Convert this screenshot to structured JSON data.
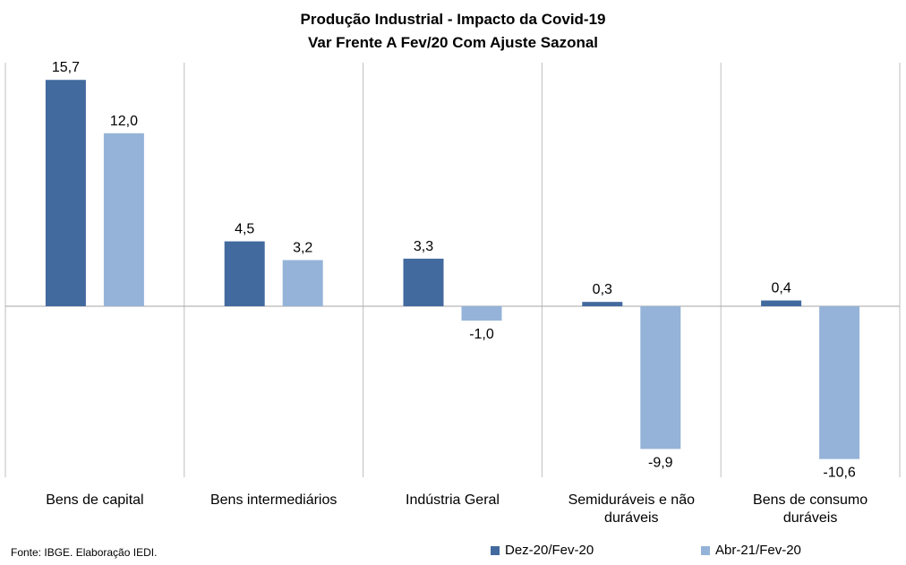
{
  "chart_data": {
    "type": "bar",
    "title": "Produção  Industrial  - Impacto da Covid-19",
    "subtitle": "Var Frente A Fev/20 Com Ajuste Sazonal",
    "categories": [
      "Bens de capital",
      "Bens intermediários",
      "Indústria Geral",
      "Semiduráveis e não duráveis",
      "Bens de consumo duráveis"
    ],
    "series": [
      {
        "name": "Dez-20/Fev-20",
        "values": [
          15.7,
          4.5,
          3.3,
          0.3,
          0.4
        ],
        "color": "#426a9e",
        "labels": [
          "15,7",
          "4,5",
          "3,3",
          "0,3",
          "0,4"
        ]
      },
      {
        "name": "Abr-21/Fev-20",
        "values": [
          12.0,
          3.2,
          -1.0,
          -9.9,
          -10.6
        ],
        "color": "#95b3d8",
        "labels": [
          "12,0",
          "3,2",
          "-1,0",
          "-9,9",
          "-10,6"
        ]
      }
    ],
    "ylim": [
      -12.5,
      17.5
    ],
    "xlabel": "",
    "ylabel": "",
    "grid": "vertical separators",
    "legend_position": "bottom-right"
  },
  "source_note": "Fonte: IBGE. Elaboração IEDI."
}
